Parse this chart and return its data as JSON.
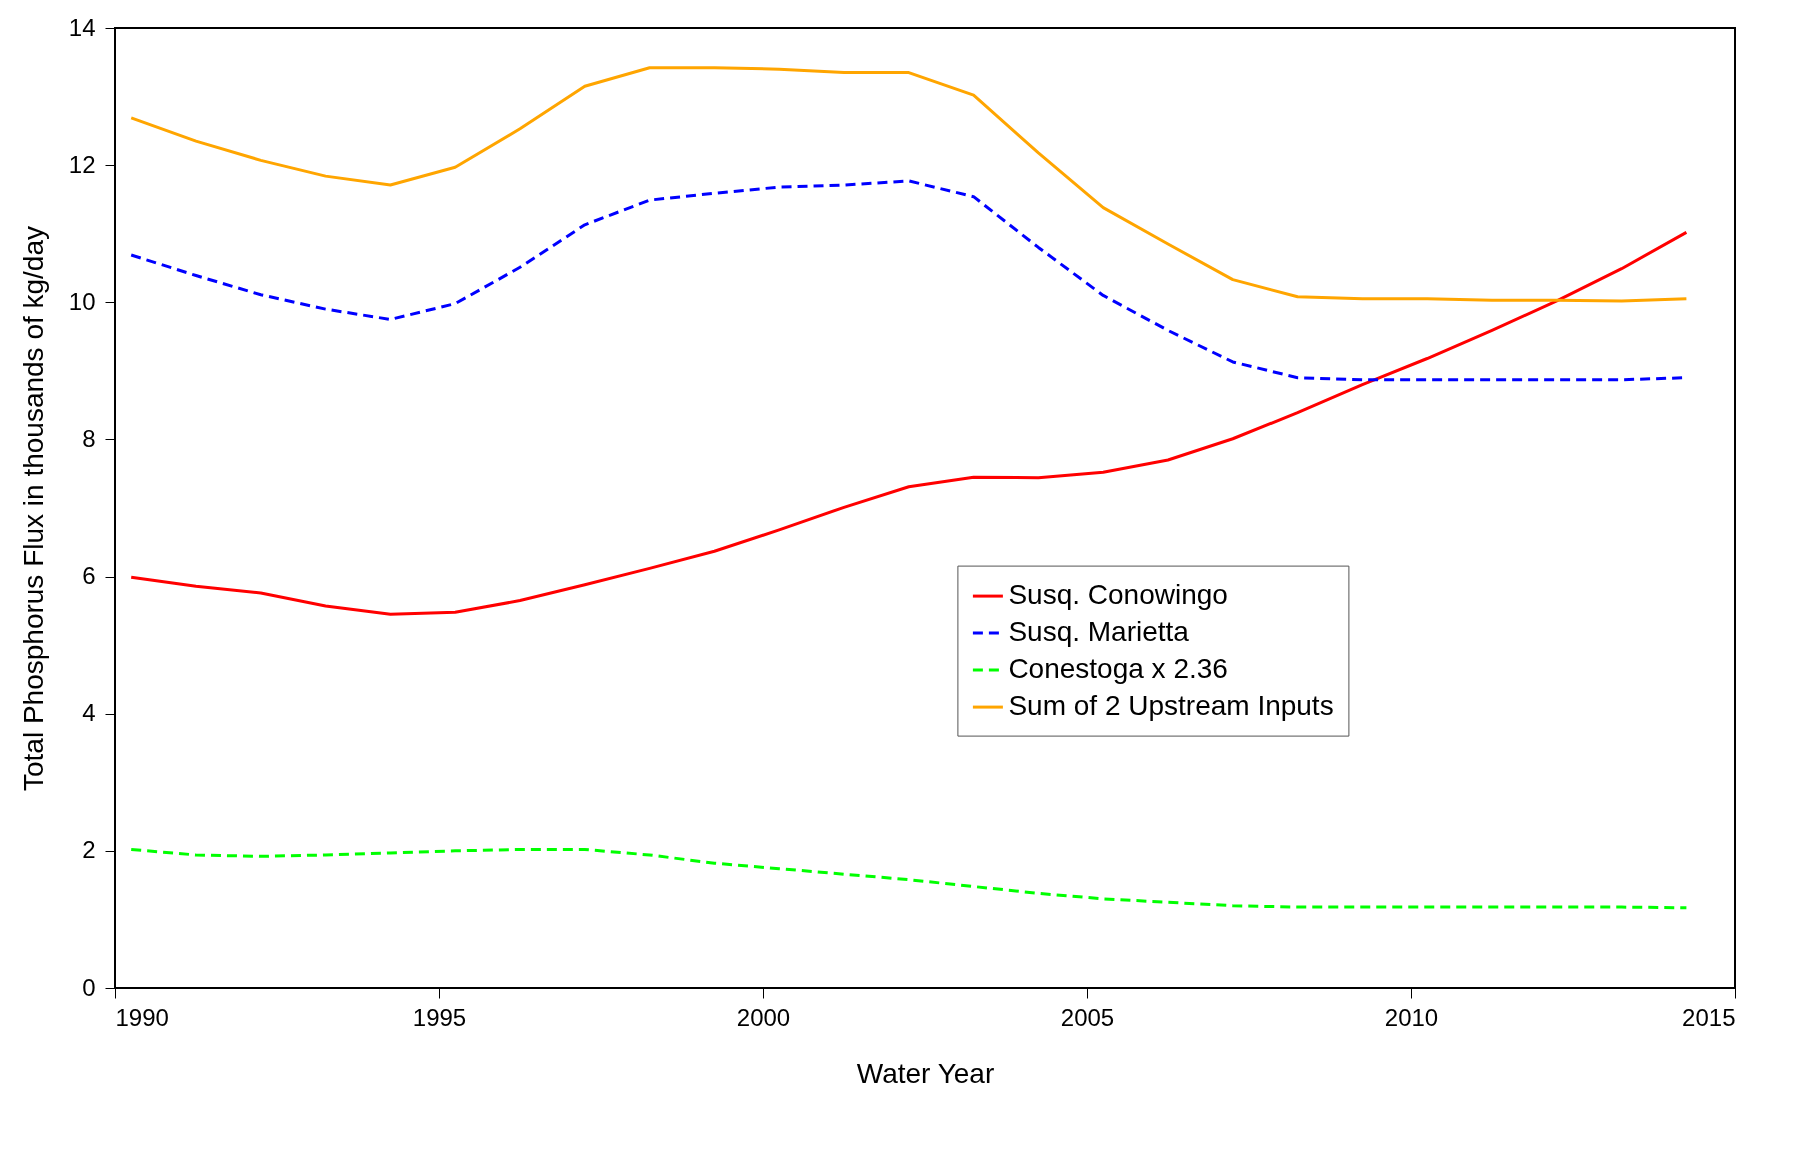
{
  "chart_data": {
    "type": "line",
    "xlabel": "Water Year",
    "ylabel": "Total Phosphorus Flux in thousands of kg/day",
    "x": [
      1990.25,
      1991.25,
      1992.25,
      1993.25,
      1994.25,
      1995.25,
      1996.25,
      1997.25,
      1998.25,
      1999.25,
      2000.25,
      2001.25,
      2002.25,
      2003.25,
      2004.25,
      2005.25,
      2006.25,
      2007.25,
      2008.25,
      2009.25,
      2010.25,
      2011.25,
      2012.25,
      2013.25,
      2014.25
    ],
    "series": [
      {
        "name": "Susq. Conowingo",
        "color": "#ff0000",
        "line_style": "solid",
        "values": [
          5.99,
          5.86,
          5.76,
          5.57,
          5.45,
          5.48,
          5.65,
          5.88,
          6.12,
          6.37,
          6.68,
          7.01,
          7.31,
          7.45,
          7.44,
          7.52,
          7.7,
          8.01,
          8.39,
          8.8,
          9.18,
          9.59,
          10.02,
          10.49,
          11.02
        ]
      },
      {
        "name": "Susq. Marietta",
        "color": "#0000ff",
        "line_style": "dashed",
        "values": [
          10.69,
          10.39,
          10.11,
          9.9,
          9.75,
          9.98,
          10.51,
          11.13,
          11.49,
          11.59,
          11.68,
          11.71,
          11.77,
          11.54,
          10.8,
          10.1,
          9.59,
          9.13,
          8.9,
          8.87,
          8.87,
          8.87,
          8.87,
          8.87,
          8.9
        ]
      },
      {
        "name": "Conestoga x 2.36",
        "color": "#00ff00",
        "line_style": "dashed",
        "values": [
          2.02,
          1.94,
          1.92,
          1.94,
          1.97,
          2.0,
          2.02,
          2.02,
          1.94,
          1.82,
          1.74,
          1.66,
          1.58,
          1.48,
          1.38,
          1.3,
          1.25,
          1.2,
          1.18,
          1.18,
          1.18,
          1.18,
          1.18,
          1.18,
          1.17
        ]
      },
      {
        "name": "Sum of 2 Upstream Inputs",
        "color": "#ffa500",
        "line_style": "solid",
        "values": [
          12.69,
          12.35,
          12.07,
          11.84,
          11.71,
          11.97,
          12.53,
          13.15,
          13.42,
          13.42,
          13.4,
          13.35,
          13.35,
          13.02,
          12.18,
          11.38,
          10.85,
          10.33,
          10.08,
          10.05,
          10.05,
          10.03,
          10.03,
          10.02,
          10.05
        ]
      }
    ],
    "xlim": [
      1990,
      2015
    ],
    "xticks": [
      1990,
      1995,
      2000,
      2005,
      2010,
      2015
    ],
    "ylim": [
      0,
      14
    ],
    "yticks": [
      0,
      2,
      4,
      6,
      8,
      10,
      12,
      14
    ],
    "grid": false,
    "legend": "right"
  }
}
